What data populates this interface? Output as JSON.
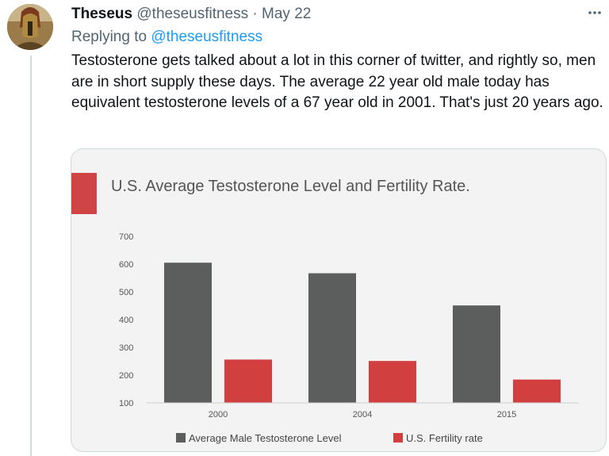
{
  "tweet": {
    "author_name": "Theseus",
    "handle": "@theseusfitness",
    "separator": "·",
    "date": "May 22",
    "replying_prefix": "Replying to",
    "replying_to": "@theseusfitness",
    "text": "Testosterone gets talked about a lot in this corner of twitter, and rightly so, men are in short supply these days. The average 22 year old male today has equivalent testosterone levels of a 67 year old in 2001. That's just 20 years ago.",
    "more_icon": "ellipsis-icon",
    "avatar_icon": "spartan-helmet-avatar"
  },
  "colors": {
    "text": "#0f1419",
    "secondary": "#536471",
    "link": "#1d9bf0",
    "bar_testosterone": "#5b5e5d",
    "bar_fertility": "#d23f3f",
    "title_accent": "#cf4444"
  },
  "chart_data": {
    "type": "bar",
    "title": "U.S. Average Testosterone Level and Fertility Rate.",
    "categories": [
      "2000",
      "2004",
      "2015"
    ],
    "series": [
      {
        "name": "Average Male Testosterone Level",
        "values": [
          605,
          567,
          451
        ]
      },
      {
        "name": "U.S. Fertility rate",
        "values": [
          256,
          251,
          184
        ]
      }
    ],
    "yticks": [
      "700",
      "600",
      "500",
      "400",
      "300",
      "200",
      "100"
    ],
    "ylim": [
      100,
      700
    ],
    "grid": false,
    "legend_position": "bottom"
  }
}
